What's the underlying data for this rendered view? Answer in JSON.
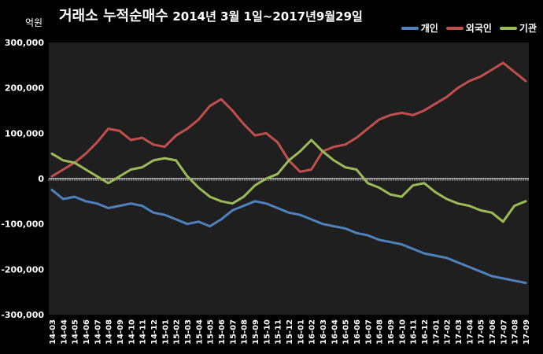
{
  "chart_data": {
    "type": "line",
    "title": "거래소 누적순매수",
    "subtitle": "2014년 3월 1일~2017년9월29일",
    "ylabel": "억원",
    "xlabel": "",
    "ylim": [
      -300000,
      300000
    ],
    "yticks": [
      "300,000",
      "200,000",
      "100,000",
      "0",
      "-100,000",
      "-200,000",
      "-300,000"
    ],
    "ytick_values": [
      300000,
      200000,
      100000,
      0,
      -100000,
      -200000,
      -300000
    ],
    "grid": false,
    "legend_position": "top-right",
    "categories": [
      "14-03",
      "14-04",
      "14-05",
      "14-06",
      "14-07",
      "14-08",
      "14-09",
      "14-10",
      "14-11",
      "14-12",
      "15-01",
      "15-02",
      "15-03",
      "15-04",
      "15-05",
      "15-06",
      "15-07",
      "15-08",
      "15-09",
      "15-10",
      "15-11",
      "15-12",
      "16-01",
      "16-02",
      "16-03",
      "16-04",
      "16-05",
      "16-06",
      "16-07",
      "16-08",
      "16-09",
      "16-10",
      "16-11",
      "16-12",
      "17-01",
      "17-02",
      "17-03",
      "17-04",
      "17-05",
      "17-06",
      "17-07",
      "17-08",
      "17-09"
    ],
    "series": [
      {
        "name": "개인",
        "color": "#4f81bd",
        "values": [
          -25000,
          -45000,
          -40000,
          -50000,
          -55000,
          -65000,
          -60000,
          -55000,
          -60000,
          -75000,
          -80000,
          -90000,
          -100000,
          -95000,
          -105000,
          -90000,
          -70000,
          -60000,
          -50000,
          -55000,
          -65000,
          -75000,
          -80000,
          -90000,
          -100000,
          -105000,
          -110000,
          -120000,
          -125000,
          -135000,
          -140000,
          -145000,
          -155000,
          -165000,
          -170000,
          -175000,
          -185000,
          -195000,
          -205000,
          -215000,
          -220000,
          -225000,
          -230000
        ]
      },
      {
        "name": "외국인",
        "color": "#c0504d",
        "values": [
          5000,
          20000,
          35000,
          55000,
          80000,
          110000,
          105000,
          85000,
          90000,
          75000,
          70000,
          95000,
          110000,
          130000,
          160000,
          175000,
          150000,
          120000,
          95000,
          100000,
          80000,
          40000,
          15000,
          20000,
          60000,
          70000,
          75000,
          90000,
          110000,
          130000,
          140000,
          145000,
          140000,
          150000,
          165000,
          180000,
          200000,
          215000,
          225000,
          240000,
          255000,
          235000,
          215000
        ]
      },
      {
        "name": "기관",
        "color": "#9bbb59",
        "values": [
          55000,
          40000,
          35000,
          20000,
          5000,
          -10000,
          5000,
          20000,
          25000,
          40000,
          45000,
          40000,
          5000,
          -20000,
          -40000,
          -50000,
          -55000,
          -40000,
          -15000,
          0,
          10000,
          40000,
          60000,
          85000,
          60000,
          40000,
          25000,
          20000,
          -10000,
          -20000,
          -35000,
          -40000,
          -15000,
          -10000,
          -30000,
          -45000,
          -55000,
          -60000,
          -70000,
          -75000,
          -95000,
          -60000,
          -50000
        ]
      }
    ]
  }
}
